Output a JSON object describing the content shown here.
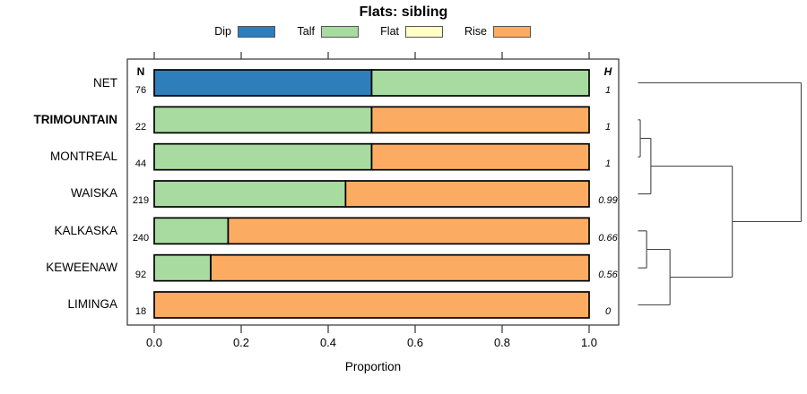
{
  "chart_data": {
    "type": "bar",
    "orientation": "horizontal",
    "stacked": true,
    "title": "Flats: sibling",
    "xlabel": "Proportion",
    "xlim": [
      0,
      1
    ],
    "xticks": [
      0.0,
      0.2,
      0.4,
      0.6,
      0.8,
      1.0
    ],
    "xtick_labels": [
      "0.0",
      "0.2",
      "0.4",
      "0.6",
      "0.8",
      "1.0"
    ],
    "grid": false,
    "legend": {
      "position": "top",
      "entries": [
        {
          "label": "Dip",
          "color": "#2E7EBC"
        },
        {
          "label": "Talf",
          "color": "#A8DBA0"
        },
        {
          "label": "Flat",
          "color": "#FFFFC6"
        },
        {
          "label": "Rise",
          "color": "#FCAC62"
        }
      ]
    },
    "colors": {
      "Dip": "#2E7EBC",
      "Talf": "#A8DBA0",
      "Flat": "#FFFFC6",
      "Rise": "#FCAC62"
    },
    "n_column_header": "N",
    "h_column_header": "H",
    "rows": [
      {
        "label": "NET",
        "bold": false,
        "n": 76,
        "h": "1",
        "segments": [
          {
            "category": "Dip",
            "value": 0.5
          },
          {
            "category": "Talf",
            "value": 0.5
          }
        ]
      },
      {
        "label": "TRIMOUNTAIN",
        "bold": true,
        "n": 22,
        "h": "1",
        "segments": [
          {
            "category": "Talf",
            "value": 0.5
          },
          {
            "category": "Rise",
            "value": 0.5
          }
        ]
      },
      {
        "label": "MONTREAL",
        "bold": false,
        "n": 44,
        "h": "1",
        "segments": [
          {
            "category": "Talf",
            "value": 0.5
          },
          {
            "category": "Rise",
            "value": 0.5
          }
        ]
      },
      {
        "label": "WAISKA",
        "bold": false,
        "n": 219,
        "h": "0.99",
        "segments": [
          {
            "category": "Talf",
            "value": 0.44
          },
          {
            "category": "Rise",
            "value": 0.56
          }
        ]
      },
      {
        "label": "KALKASKA",
        "bold": false,
        "n": 240,
        "h": "0.66",
        "segments": [
          {
            "category": "Talf",
            "value": 0.17
          },
          {
            "category": "Rise",
            "value": 0.83
          }
        ]
      },
      {
        "label": "KEWEENAW",
        "bold": false,
        "n": 92,
        "h": "0.56",
        "segments": [
          {
            "category": "Talf",
            "value": 0.13
          },
          {
            "category": "Rise",
            "value": 0.87
          }
        ]
      },
      {
        "label": "LIMINGA",
        "bold": false,
        "n": 18,
        "h": "0",
        "segments": [
          {
            "category": "Rise",
            "value": 1.0
          }
        ]
      }
    ],
    "dendrogram": {
      "leaf_order": [
        "NET",
        "TRIMOUNTAIN",
        "MONTREAL",
        "WAISKA",
        "KALKASKA",
        "KEWEENAW",
        "LIMINGA"
      ],
      "x_scale": "relative-merge-height-0-to-1",
      "y_scale": "row-index",
      "merges": [
        {
          "members": [
            "TRIMOUNTAIN",
            "MONTREAL"
          ],
          "height": 0.014
        },
        {
          "members": [
            "KALKASKA",
            "KEWEENAW"
          ],
          "height": 0.053
        },
        {
          "members": [
            "TRIMOUNTAIN",
            "MONTREAL",
            "WAISKA"
          ],
          "height": 0.079
        },
        {
          "members": [
            "KALKASKA",
            "KEWEENAW",
            "LIMINGA"
          ],
          "height": 0.196
        },
        {
          "members": [
            "TRIMOUNTAIN",
            "MONTREAL",
            "WAISKA",
            "KALKASKA",
            "KEWEENAW",
            "LIMINGA"
          ],
          "height": 0.578
        },
        {
          "members": [
            "NET",
            "all"
          ],
          "height": 1.0
        }
      ],
      "segments": [
        [
          0,
          0,
          1.0,
          0
        ],
        [
          0,
          1,
          0.014,
          1
        ],
        [
          0,
          2,
          0.014,
          2
        ],
        [
          0,
          3,
          0.079,
          3
        ],
        [
          0,
          4,
          0.053,
          4
        ],
        [
          0,
          5,
          0.053,
          5
        ],
        [
          0,
          6,
          0.196,
          6
        ],
        [
          0.014,
          1,
          0.014,
          2
        ],
        [
          0.053,
          4,
          0.053,
          5
        ],
        [
          0.079,
          1.5,
          0.079,
          3
        ],
        [
          0.196,
          4.5,
          0.196,
          6
        ],
        [
          0.578,
          2.25,
          0.578,
          5.25
        ],
        [
          1.0,
          0,
          1.0,
          3.75
        ],
        [
          0.014,
          1.5,
          0.079,
          1.5
        ],
        [
          0.053,
          4.5,
          0.196,
          4.5
        ],
        [
          0.079,
          2.25,
          0.578,
          2.25
        ],
        [
          0.196,
          5.25,
          0.578,
          5.25
        ],
        [
          0.578,
          3.75,
          1.0,
          3.75
        ]
      ]
    }
  }
}
